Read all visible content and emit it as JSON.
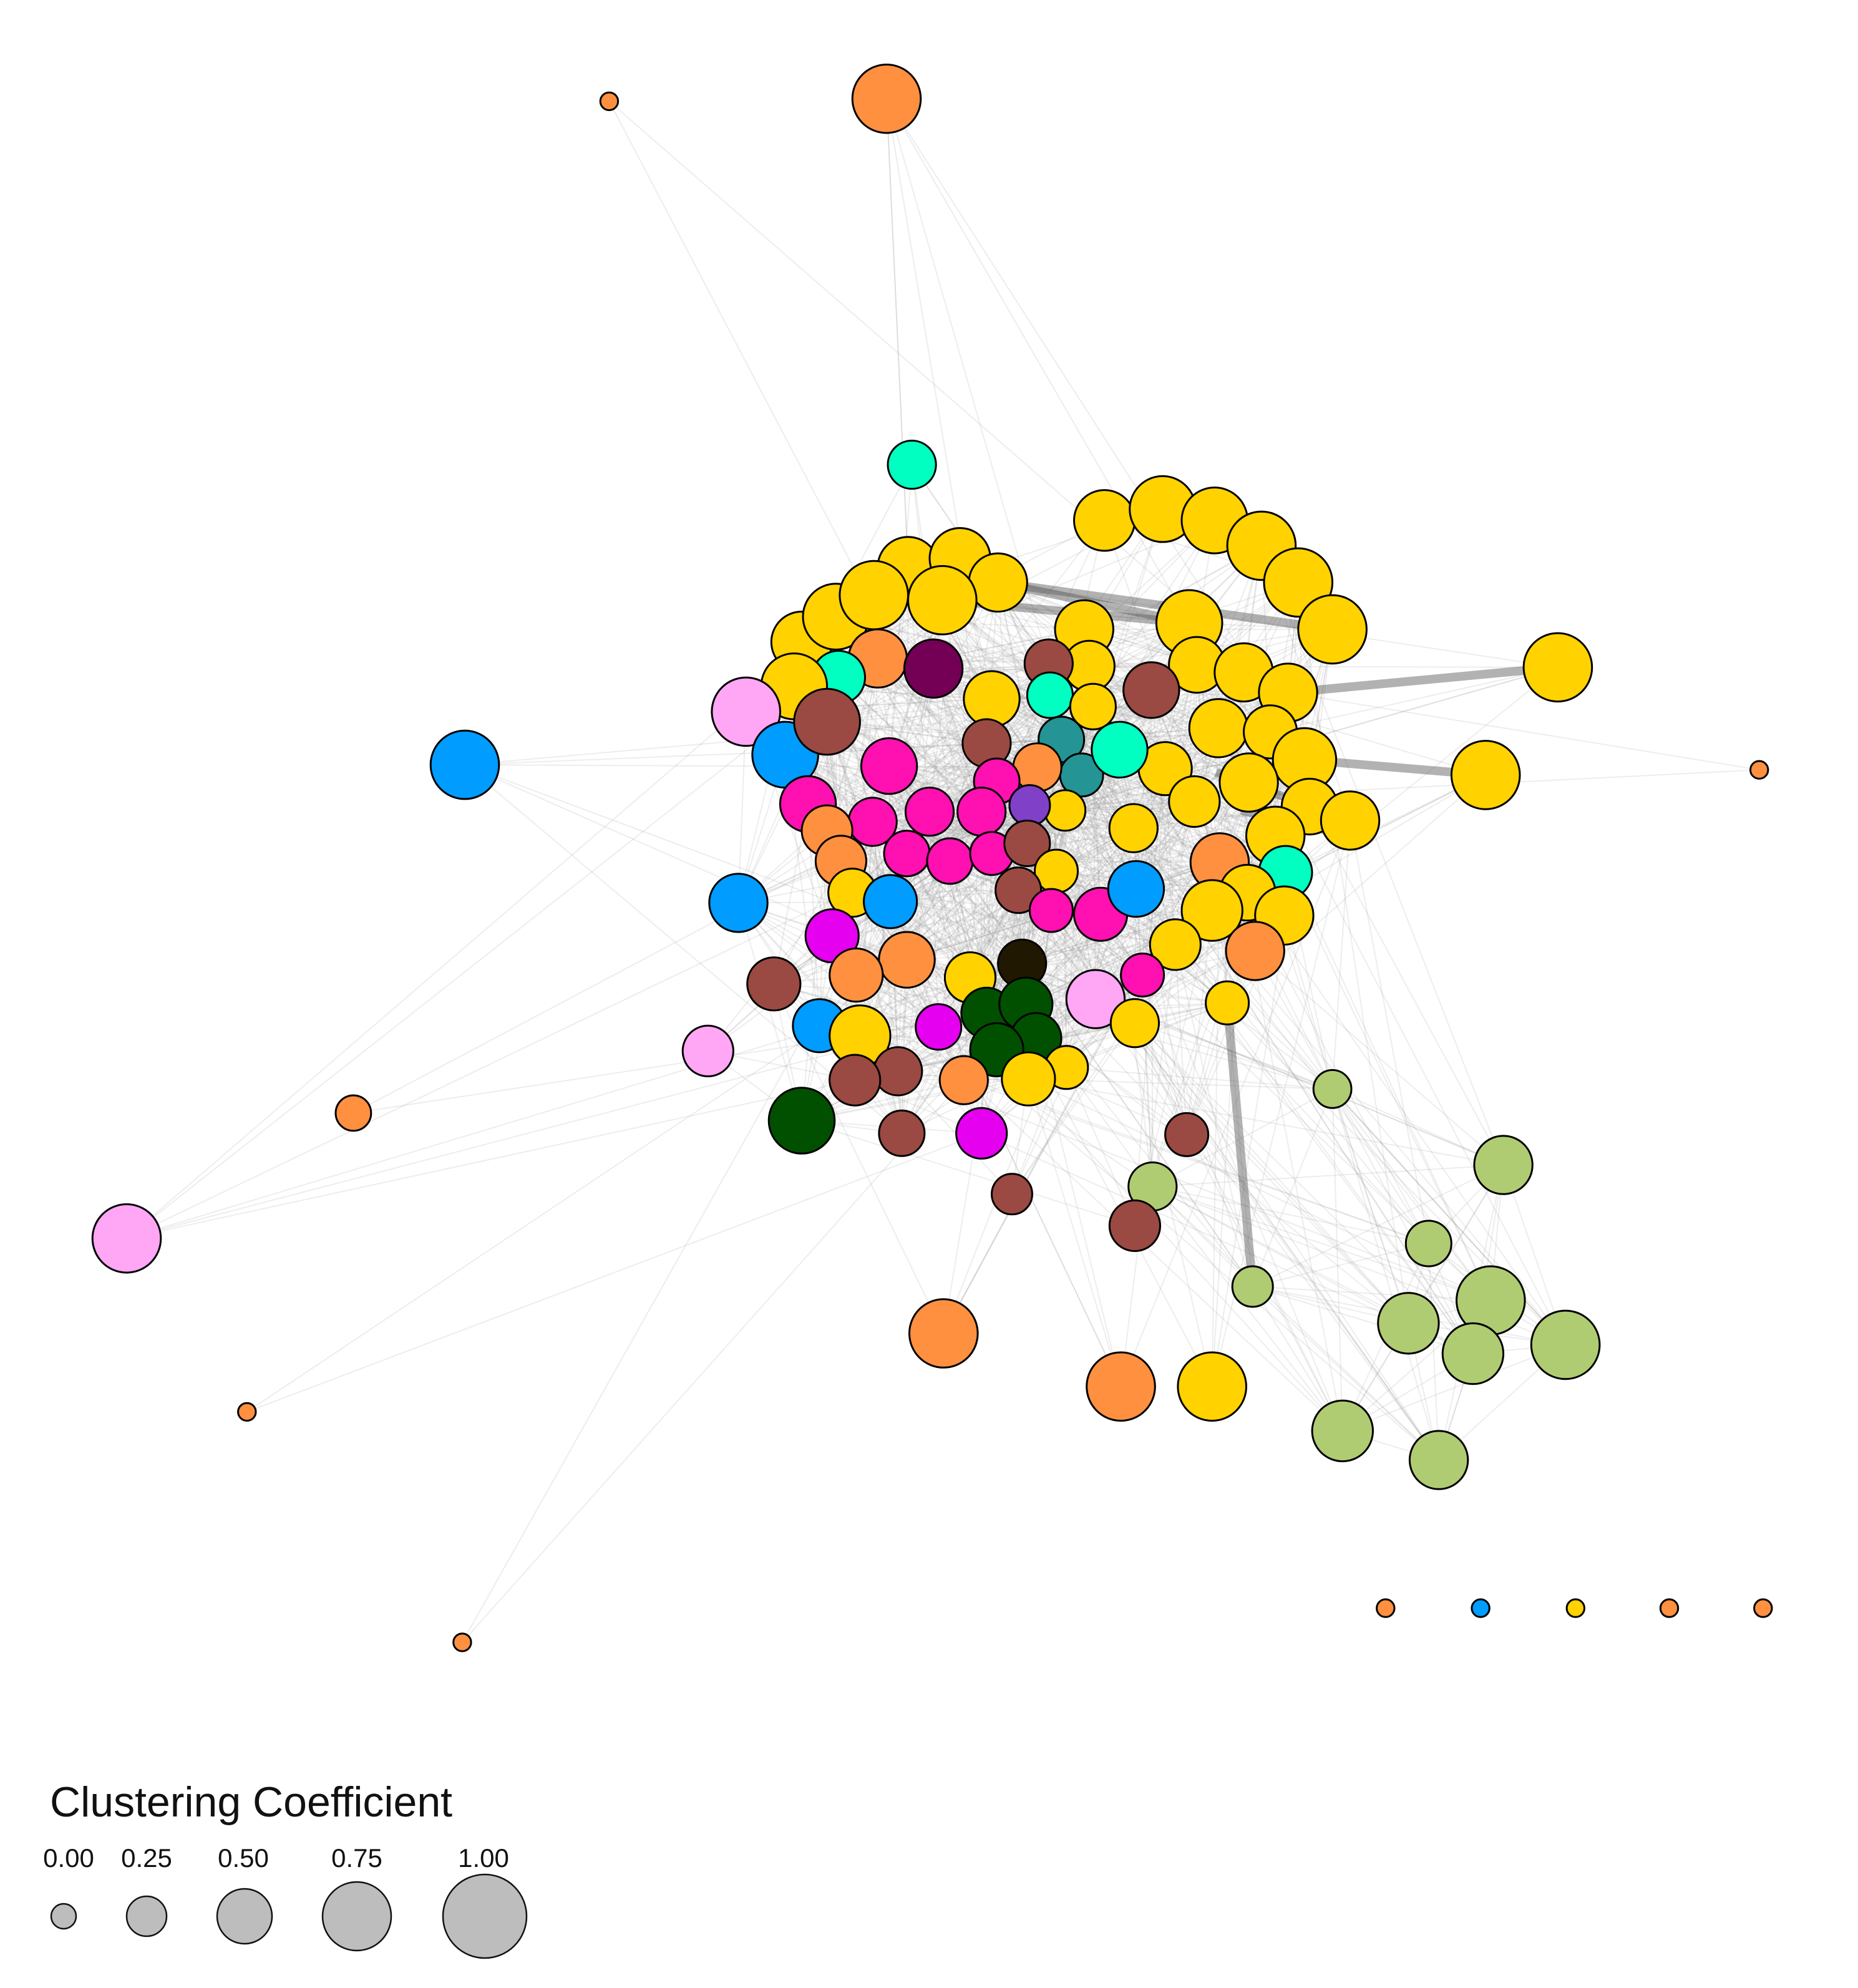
{
  "palette": {
    "yellow": "#ffd200",
    "orange": "#ff9040",
    "brown": "#9a4a42",
    "pink": "#ff10b0",
    "light_pink": "#ffa6f5",
    "blue": "#009cff",
    "aqua": "#00ffc0",
    "teal": "#249494",
    "dark_green": "#005000",
    "light_green": "#b0cc72",
    "magenta": "#e600f0",
    "plum": "#730055",
    "violet": "#8040c8",
    "near_black": "#201800"
  },
  "legend": {
    "title": "Clustering Coefficient",
    "items": [
      {
        "label": "0.00",
        "value": 0.0
      },
      {
        "label": "0.25",
        "value": 0.25
      },
      {
        "label": "0.50",
        "value": 0.5
      },
      {
        "label": "0.75",
        "value": 0.75
      },
      {
        "label": "1.00",
        "value": 1.0
      }
    ]
  }
}
